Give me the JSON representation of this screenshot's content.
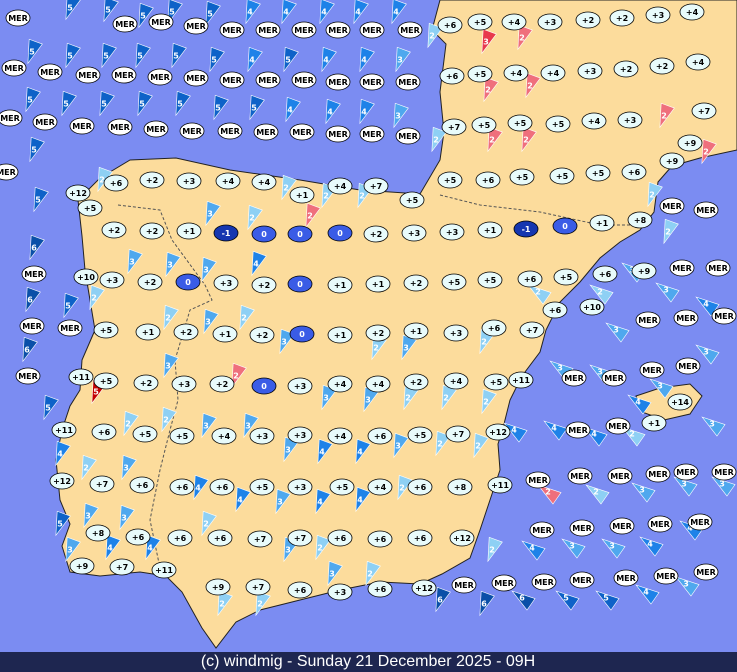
{
  "footer": "(c) windmig - Sunday 21 December 2025 - 09H",
  "markers": [
    {
      "label": "+6"
    },
    {
      "label": "+5"
    },
    {
      "label": "+4"
    },
    {
      "label": "+3"
    },
    {
      "label": "+2"
    },
    {
      "label": "+2"
    },
    {
      "label": "+3"
    },
    {
      "label": "+4"
    },
    {
      "label": "+6"
    },
    {
      "label": "+5"
    },
    {
      "label": "+4"
    },
    {
      "label": "+4"
    },
    {
      "label": "+3"
    },
    {
      "label": "+2"
    },
    {
      "label": "+2"
    },
    {
      "label": "+4"
    },
    {
      "label": "+7"
    },
    {
      "label": "+5"
    },
    {
      "label": "+5"
    },
    {
      "label": "+5"
    },
    {
      "label": "+4"
    },
    {
      "label": "+3"
    },
    {
      "label": "+7"
    },
    {
      "label": "+9"
    },
    {
      "label": "+9"
    },
    {
      "label": "+12"
    },
    {
      "label": "+6"
    },
    {
      "label": "+2"
    },
    {
      "label": "+3"
    },
    {
      "label": "+4"
    },
    {
      "label": "+4"
    },
    {
      "label": "+1"
    },
    {
      "label": "+4"
    },
    {
      "label": "+7"
    },
    {
      "label": "+5"
    },
    {
      "label": "+5"
    },
    {
      "label": "+6"
    },
    {
      "label": "+5"
    },
    {
      "label": "+5"
    },
    {
      "label": "+5"
    },
    {
      "label": "+6"
    },
    {
      "label": "+5"
    },
    {
      "label": "+2"
    },
    {
      "label": "+2"
    },
    {
      "label": "+1"
    },
    {
      "label": "-1",
      "fill": "#1536b0"
    },
    {
      "label": "0",
      "fill": "#3a5ce6"
    },
    {
      "label": "0",
      "fill": "#3a5ce6"
    },
    {
      "label": "0",
      "fill": "#3a5ce6"
    },
    {
      "label": "+2"
    },
    {
      "label": "+3"
    },
    {
      "label": "+3"
    },
    {
      "label": "+1"
    },
    {
      "label": "-1",
      "fill": "#1536b0"
    },
    {
      "label": "0",
      "fill": "#3a5ce6"
    },
    {
      "label": "+1"
    },
    {
      "label": "+8"
    },
    {
      "label": "+10"
    },
    {
      "label": "+3"
    },
    {
      "label": "+2"
    },
    {
      "label": "0",
      "fill": "#3a5ce6"
    },
    {
      "label": "+3"
    },
    {
      "label": "+2"
    },
    {
      "label": "0",
      "fill": "#3a5ce6"
    },
    {
      "label": "+1"
    },
    {
      "label": "+1"
    },
    {
      "label": "+2"
    },
    {
      "label": "+5"
    },
    {
      "label": "+5"
    },
    {
      "label": "+6"
    },
    {
      "label": "+5"
    },
    {
      "label": "+6"
    },
    {
      "label": "+9"
    },
    {
      "label": "+10"
    },
    {
      "label": "+6"
    },
    {
      "label": "+5"
    },
    {
      "label": "+1"
    },
    {
      "label": "+2"
    },
    {
      "label": "+1"
    },
    {
      "label": "+2"
    },
    {
      "label": "0",
      "fill": "#3a5ce6"
    },
    {
      "label": "+1"
    },
    {
      "label": "+2"
    },
    {
      "label": "+1"
    },
    {
      "label": "+3"
    },
    {
      "label": "+6"
    },
    {
      "label": "+7"
    },
    {
      "label": "+11"
    },
    {
      "label": "+5"
    },
    {
      "label": "+2"
    },
    {
      "label": "+3"
    },
    {
      "label": "+2"
    },
    {
      "label": "0",
      "fill": "#3a5ce6"
    },
    {
      "label": "+3"
    },
    {
      "label": "+4"
    },
    {
      "label": "+4"
    },
    {
      "label": "+2"
    },
    {
      "label": "+4"
    },
    {
      "label": "+5"
    },
    {
      "label": "+11"
    },
    {
      "label": "+11"
    },
    {
      "label": "+6"
    },
    {
      "label": "+5"
    },
    {
      "label": "+5"
    },
    {
      "label": "+4"
    },
    {
      "label": "+3"
    },
    {
      "label": "+3"
    },
    {
      "label": "+4"
    },
    {
      "label": "+6"
    },
    {
      "label": "+5"
    },
    {
      "label": "+7"
    },
    {
      "label": "+12"
    },
    {
      "label": "+14"
    },
    {
      "label": "+1"
    },
    {
      "label": "+12"
    },
    {
      "label": "+7"
    },
    {
      "label": "+6"
    },
    {
      "label": "+6"
    },
    {
      "label": "+6"
    },
    {
      "label": "+5"
    },
    {
      "label": "+3"
    },
    {
      "label": "+5"
    },
    {
      "label": "+4"
    },
    {
      "label": "+6"
    },
    {
      "label": "+8"
    },
    {
      "label": "+11"
    },
    {
      "label": "+8"
    },
    {
      "label": "+6"
    },
    {
      "label": "+6"
    },
    {
      "label": "+6"
    },
    {
      "label": "+7"
    },
    {
      "label": "+7"
    },
    {
      "label": "+6"
    },
    {
      "label": "+6"
    },
    {
      "label": "+6"
    },
    {
      "label": "+12"
    },
    {
      "label": "+9"
    },
    {
      "label": "+7"
    },
    {
      "label": "+11"
    },
    {
      "label": "+9"
    },
    {
      "label": "+7"
    },
    {
      "label": "+6"
    },
    {
      "label": "+3"
    },
    {
      "label": "+6"
    },
    {
      "label": "+12"
    }
  ],
  "sea_labels": [
    "MER",
    "MER",
    "MER",
    "MER",
    "MER",
    "MER",
    "MER",
    "MER",
    "MER",
    "MER",
    "MER",
    "MER",
    "MER",
    "MER",
    "MER",
    "MER",
    "MER",
    "MER",
    "MER",
    "MER",
    "MER",
    "MER",
    "MER",
    "MER",
    "MER",
    "MER",
    "MER",
    "MER",
    "MER",
    "MER",
    "MER",
    "MER",
    "MER",
    "MER",
    "MER",
    "MER",
    "MER",
    "MER",
    "MER",
    "MER",
    "MER",
    "MER",
    "MER",
    "MER",
    "MER",
    "MER",
    "MER",
    "MER",
    "MER",
    "MER",
    "MER",
    "MER",
    "MER",
    "MER",
    "MER",
    "MER",
    "MER",
    "MER",
    "MER",
    "MER",
    "MER",
    "MER",
    "MER",
    "MER",
    "MER",
    "MER",
    "MER",
    "MER",
    "MER",
    "MER"
  ],
  "winds": [
    {
      "label": "5",
      "color": "#0e62c8"
    },
    {
      "label": "5",
      "color": "#0e62c8"
    },
    {
      "label": "5",
      "color": "#0e62c8"
    },
    {
      "label": "5",
      "color": "#0e62c8"
    },
    {
      "label": "5",
      "color": "#0e62c8"
    },
    {
      "label": "5",
      "color": "#0e62c8"
    },
    {
      "label": "4",
      "color": "#1e82e8"
    },
    {
      "label": "4",
      "color": "#1e82e8"
    },
    {
      "label": "4",
      "color": "#1e82e8"
    },
    {
      "label": "4",
      "color": "#1e82e8"
    },
    {
      "label": "4",
      "color": "#1e82e8"
    },
    {
      "label": "5",
      "color": "#0e62c8"
    },
    {
      "label": "5",
      "color": "#0e62c8"
    },
    {
      "label": "5",
      "color": "#0e62c8"
    },
    {
      "label": "5",
      "color": "#0e62c8"
    },
    {
      "label": "5",
      "color": "#0e62c8"
    },
    {
      "label": "5",
      "color": "#0e62c8"
    },
    {
      "label": "5",
      "color": "#0e62c8"
    },
    {
      "label": "4",
      "color": "#1e82e8"
    },
    {
      "label": "4",
      "color": "#1e82e8"
    },
    {
      "label": "4",
      "color": "#1e82e8"
    },
    {
      "label": "3",
      "color": "#4fa8ee"
    },
    {
      "label": "5",
      "color": "#0e62c8"
    },
    {
      "label": "5",
      "color": "#0e62c8"
    },
    {
      "label": "6",
      "color": "#0a4fa8"
    },
    {
      "label": "6",
      "color": "#0a4fa8"
    },
    {
      "label": "5",
      "color": "#0e62c8"
    },
    {
      "label": "6",
      "color": "#0a4fa8"
    },
    {
      "label": "5",
      "color": "#0e62c8"
    },
    {
      "label": "5",
      "color": "#0e62c8"
    },
    {
      "label": "5",
      "color": "#0e62c8"
    },
    {
      "label": "5",
      "color": "#0e62c8"
    },
    {
      "label": "5",
      "color": "#0e62c8"
    },
    {
      "label": "4",
      "color": "#1e82e8"
    },
    {
      "label": "5",
      "color": "#0e62c8"
    },
    {
      "label": "4",
      "color": "#1e82e8"
    },
    {
      "label": "4",
      "color": "#1e82e8"
    },
    {
      "label": "3",
      "color": "#4fa8ee"
    },
    {
      "label": "2",
      "color": "#8ed0f4"
    },
    {
      "label": "2",
      "color": "#8ed0f4"
    },
    {
      "label": "3",
      "color": "#e8384c"
    },
    {
      "label": "2",
      "color": "#ef6f7c"
    },
    {
      "label": "2",
      "color": "#ef6f7c"
    },
    {
      "label": "2",
      "color": "#ef6f7c"
    },
    {
      "label": "2",
      "color": "#ef6f7c"
    },
    {
      "label": "2",
      "color": "#ef6f7c"
    },
    {
      "label": "2",
      "color": "#ef6f7c"
    },
    {
      "label": "2",
      "color": "#ef6f7c"
    },
    {
      "label": "2",
      "color": "#8ed0f4"
    },
    {
      "label": "3",
      "color": "#4fa8ee"
    },
    {
      "label": "3",
      "color": "#4fa8ee"
    },
    {
      "label": "4",
      "color": "#1e82e8"
    },
    {
      "label": "3",
      "color": "#4fa8ee"
    },
    {
      "label": "3",
      "color": "#4fa8ee"
    },
    {
      "label": "2",
      "color": "#ef6f7c"
    },
    {
      "label": "2",
      "color": "#8ed0f4"
    },
    {
      "label": "2",
      "color": "#8ed0f4"
    },
    {
      "label": "2",
      "color": "#8ed0f4"
    },
    {
      "label": "2",
      "color": "#8ed0f4"
    },
    {
      "label": "2",
      "color": "#8ed0f4"
    },
    {
      "label": "2",
      "color": "#8ed0f4"
    },
    {
      "label": "3",
      "color": "#4fa8ee"
    },
    {
      "label": "2",
      "color": "#8ed0f4"
    },
    {
      "label": "3",
      "color": "#4fa8ee"
    },
    {
      "label": "3",
      "color": "#4fa8ee"
    },
    {
      "label": "2",
      "color": "#ef6f7c"
    },
    {
      "label": "5",
      "color": "#c40000"
    },
    {
      "label": "3",
      "color": "#4fa8ee"
    },
    {
      "label": "3",
      "color": "#4fa8ee"
    },
    {
      "label": "2",
      "color": "#8ed0f4"
    },
    {
      "label": "2",
      "color": "#8ed0f4"
    },
    {
      "label": "2",
      "color": "#8ed0f4"
    },
    {
      "label": "2",
      "color": "#8ed0f4"
    },
    {
      "label": "3",
      "color": "#4fa8ee"
    },
    {
      "label": "2",
      "color": "#8ed0f4"
    },
    {
      "label": "2",
      "color": "#8ed0f4"
    },
    {
      "label": "2",
      "color": "#8ed0f4"
    },
    {
      "label": "3",
      "color": "#4fa8ee"
    },
    {
      "label": "3",
      "color": "#4fa8ee"
    },
    {
      "label": "2",
      "color": "#8ed0f4"
    },
    {
      "label": "2",
      "color": "#8ed0f4"
    },
    {
      "label": "3",
      "color": "#4fa8ee"
    },
    {
      "label": "3",
      "color": "#4fa8ee"
    },
    {
      "label": "3",
      "color": "#4fa8ee"
    },
    {
      "label": "4",
      "color": "#1e82e8"
    },
    {
      "label": "4",
      "color": "#1e82e8"
    },
    {
      "label": "3",
      "color": "#4fa8ee"
    },
    {
      "label": "2",
      "color": "#8ed0f4"
    },
    {
      "label": "2",
      "color": "#8ed0f4"
    },
    {
      "label": "4",
      "color": "#1e82e8"
    },
    {
      "label": "4",
      "color": "#1e82e8"
    },
    {
      "label": "4",
      "color": "#1e82e8"
    },
    {
      "label": "2",
      "color": "#8ed0f4"
    },
    {
      "label": "4",
      "color": "#1e82e8"
    },
    {
      "label": "3",
      "color": "#4fa8ee"
    },
    {
      "label": "2",
      "color": "#8ed0f4"
    },
    {
      "label": "3",
      "color": "#4fa8ee"
    },
    {
      "label": "4",
      "color": "#1e82e8"
    },
    {
      "label": "4",
      "color": "#1e82e8"
    },
    {
      "label": "3",
      "color": "#4fa8ee"
    },
    {
      "label": "4",
      "color": "#1e82e8"
    },
    {
      "label": "4",
      "color": "#1e82e8"
    },
    {
      "label": "2",
      "color": "#8ed0f4"
    },
    {
      "label": "2",
      "color": "#ef6f7c"
    },
    {
      "label": "2",
      "color": "#8ed0f4"
    },
    {
      "label": "3",
      "color": "#4fa8ee"
    },
    {
      "label": "3",
      "color": "#4fa8ee"
    },
    {
      "label": "3",
      "color": "#4fa8ee"
    },
    {
      "label": "3",
      "color": "#4fa8ee"
    },
    {
      "label": "3",
      "color": "#4fa8ee"
    },
    {
      "label": "5",
      "color": "#0e62c8"
    },
    {
      "label": "3",
      "color": "#4fa8ee"
    },
    {
      "label": "4",
      "color": "#1e82e8"
    },
    {
      "label": "4",
      "color": "#1e82e8"
    },
    {
      "label": "2",
      "color": "#8ed0f4"
    },
    {
      "label": "3",
      "color": "#4fa8ee"
    },
    {
      "label": "2",
      "color": "#8ed0f4"
    },
    {
      "label": "2",
      "color": "#8ed0f4"
    },
    {
      "label": "4",
      "color": "#1e82e8"
    },
    {
      "label": "3",
      "color": "#4fa8ee"
    },
    {
      "label": "3",
      "color": "#4fa8ee"
    },
    {
      "label": "4",
      "color": "#1e82e8"
    },
    {
      "label": "4",
      "color": "#1e82e8"
    },
    {
      "label": "2",
      "color": "#8ed0f4"
    },
    {
      "label": "2",
      "color": "#8ed0f4"
    },
    {
      "label": "3",
      "color": "#4fa8ee"
    },
    {
      "label": "2",
      "color": "#8ed0f4"
    },
    {
      "label": "6",
      "color": "#0a4fa8"
    },
    {
      "label": "6",
      "color": "#0a4fa8"
    },
    {
      "label": "6",
      "color": "#0a4fa8"
    },
    {
      "label": "5",
      "color": "#0e62c8"
    },
    {
      "label": "5",
      "color": "#0e62c8"
    },
    {
      "label": "4",
      "color": "#1e82e8"
    },
    {
      "label": "3",
      "color": "#4fa8ee"
    },
    {
      "label": "3",
      "color": "#4fa8ee"
    },
    {
      "label": "3",
      "color": "#4fa8ee"
    },
    {
      "label": "3",
      "color": "#4fa8ee"
    },
    {
      "label": "4",
      "color": "#1e82e8"
    },
    {
      "label": "3",
      "color": "#4fa8ee"
    },
    {
      "label": "3",
      "color": "#4fa8ee"
    },
    {
      "label": "2",
      "color": "#8ed0f4"
    },
    {
      "label": "2",
      "color": "#8ed0f4"
    },
    {
      "label": "4",
      "color": "#1e82e8"
    },
    {
      "label": "5",
      "color": "#0e62c8"
    }
  ]
}
